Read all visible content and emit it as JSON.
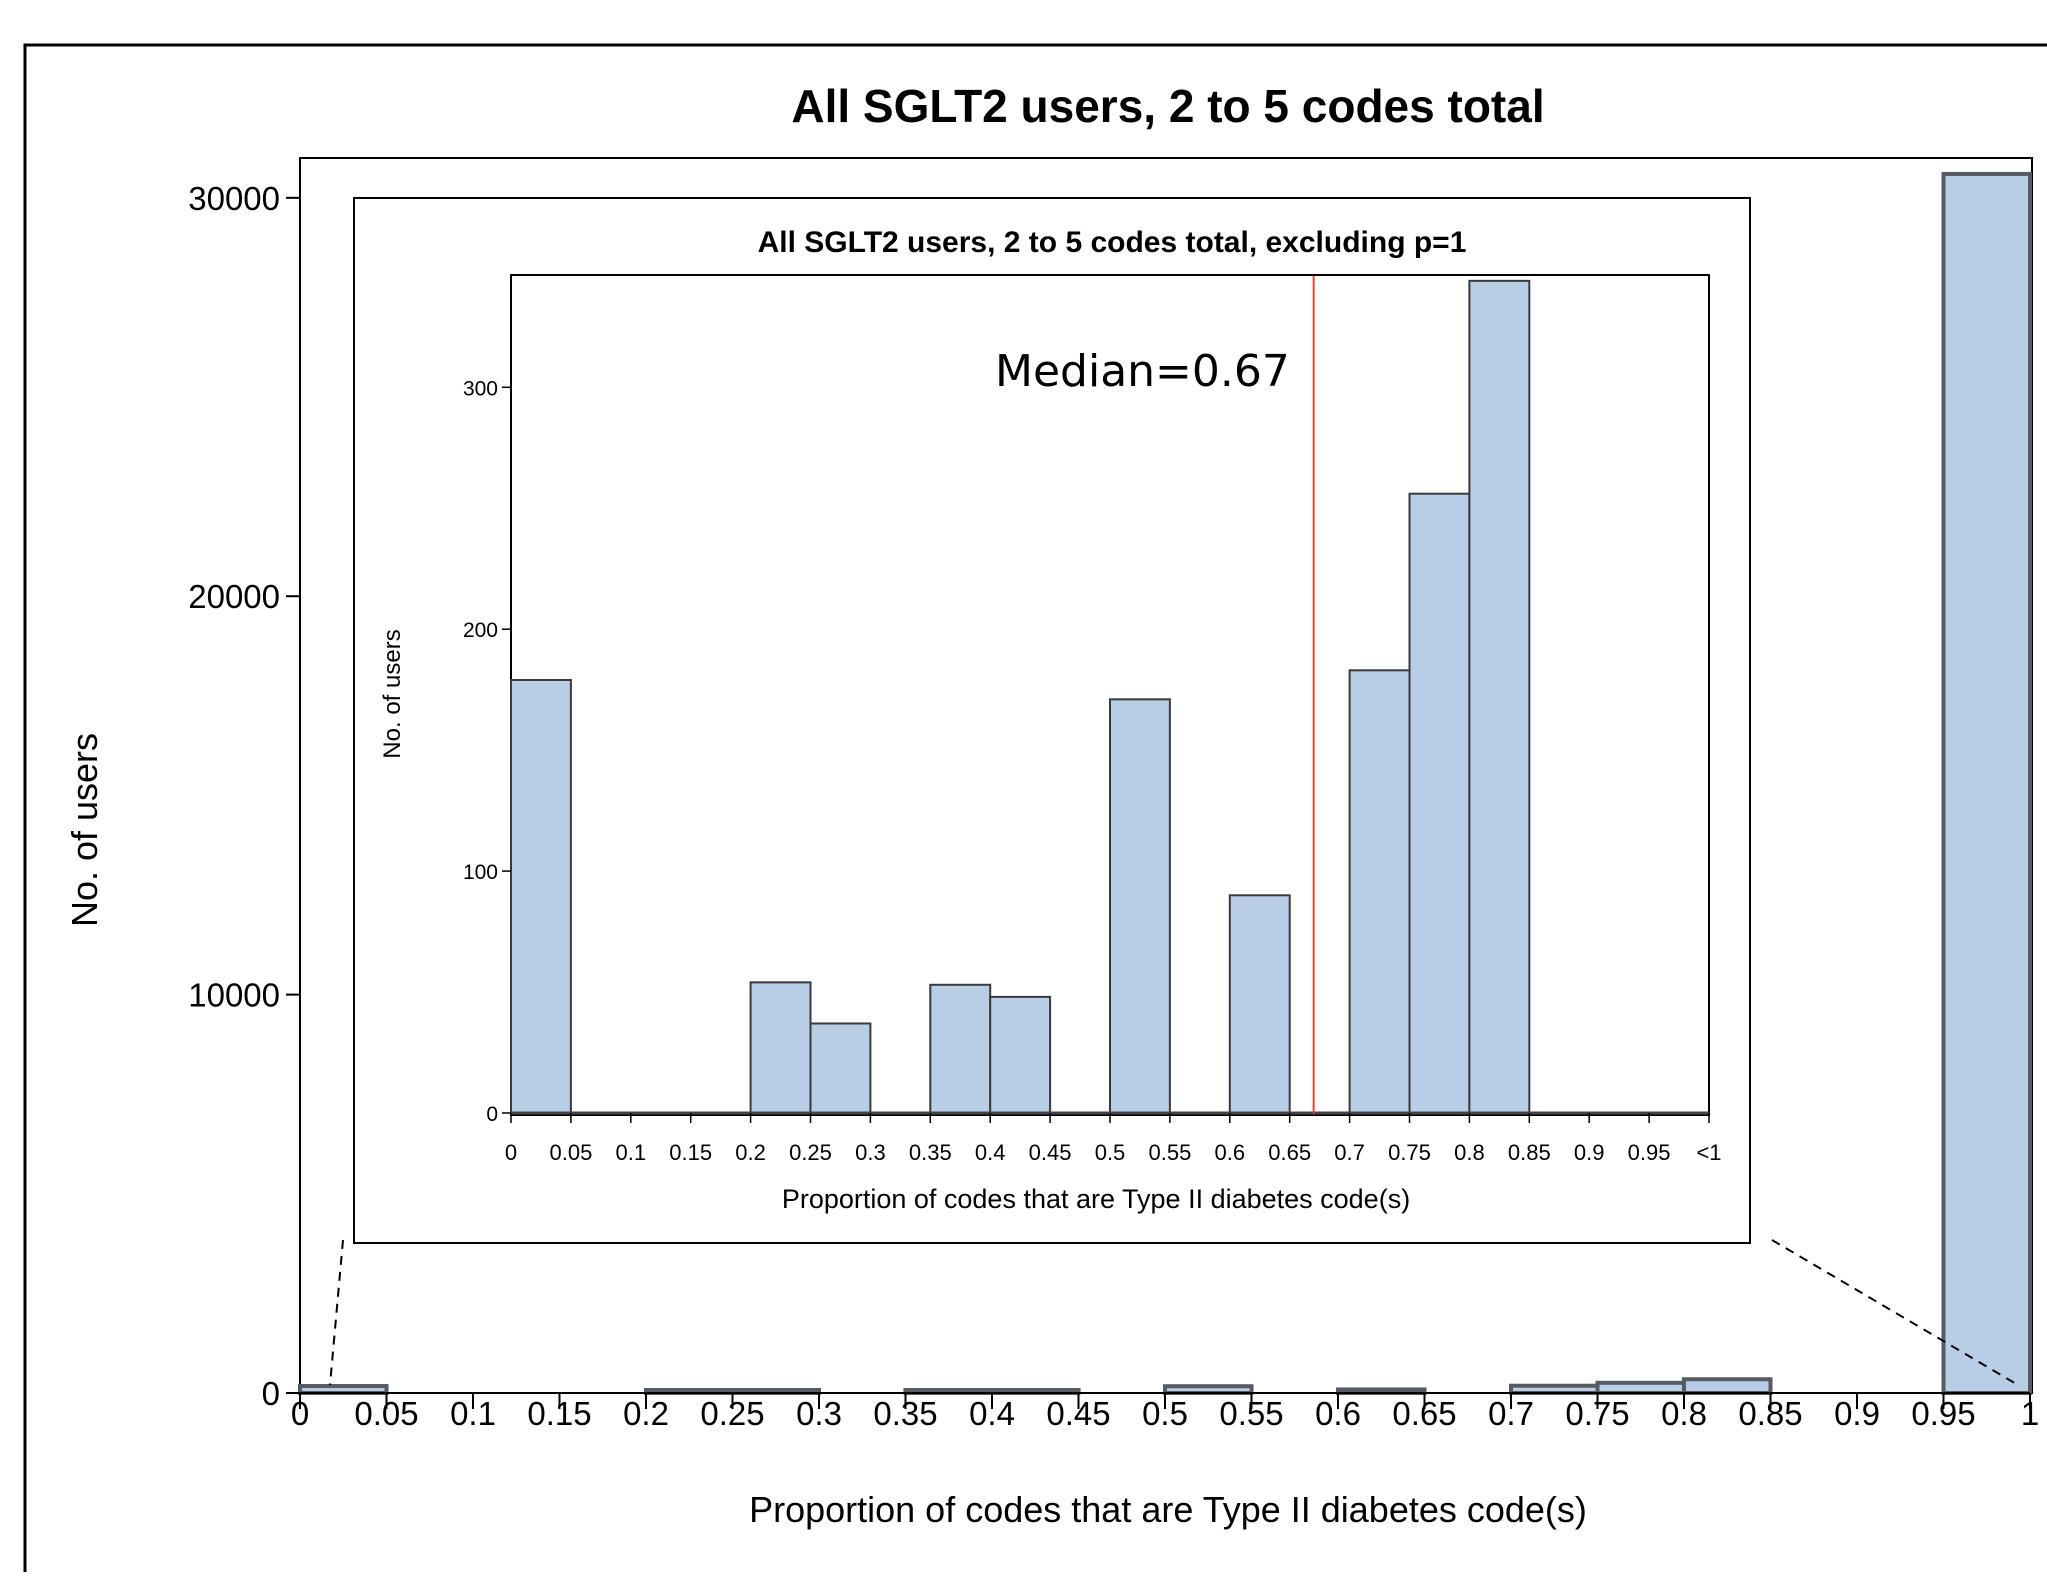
{
  "chart_data": [
    {
      "id": "main",
      "type": "bar",
      "title": "All SGLT2 users, 2 to 5 codes total",
      "xlabel": "Proportion of codes that are Type II diabetes code(s)",
      "ylabel": "No. of users",
      "x_tick_labels": [
        "0",
        "0.05",
        "0.1",
        "0.15",
        "0.2",
        "0.25",
        "0.3",
        "0.35",
        "0.4",
        "0.45",
        "0.5",
        "0.55",
        "0.6",
        "0.65",
        "0.7",
        "0.75",
        "0.8",
        "0.85",
        "0.9",
        "0.95",
        "1"
      ],
      "y_ticks": [
        0,
        10000,
        20000,
        30000
      ],
      "y_tick_labels": [
        "0",
        "10000",
        "20000",
        "30000"
      ],
      "ylim": [
        0,
        31000
      ],
      "bins": [
        {
          "x0": 0,
          "x1": 0.05,
          "value": 175
        },
        {
          "x0": 0.2,
          "x1": 0.25,
          "value": 53
        },
        {
          "x0": 0.25,
          "x1": 0.3,
          "value": 37
        },
        {
          "x0": 0.35,
          "x1": 0.4,
          "value": 52
        },
        {
          "x0": 0.4,
          "x1": 0.45,
          "value": 48
        },
        {
          "x0": 0.5,
          "x1": 0.55,
          "value": 170
        },
        {
          "x0": 0.6,
          "x1": 0.65,
          "value": 89
        },
        {
          "x0": 0.7,
          "x1": 0.75,
          "value": 183
        },
        {
          "x0": 0.75,
          "x1": 0.8,
          "value": 256
        },
        {
          "x0": 0.8,
          "x1": 0.85,
          "value": 345
        },
        {
          "x0": 0.95,
          "x1": 1.0,
          "value": 30600
        }
      ]
    },
    {
      "id": "inset",
      "type": "bar",
      "title": "All SGLT2 users, 2 to 5 codes total, excluding p=1",
      "xlabel": "Proportion of codes that are Type II diabetes code(s)",
      "ylabel": "No. of users",
      "x_tick_labels": [
        "0",
        "0.05",
        "0.1",
        "0.15",
        "0.2",
        "0.25",
        "0.3",
        "0.35",
        "0.4",
        "0.45",
        "0.5",
        "0.55",
        "0.6",
        "0.65",
        "0.7",
        "0.75",
        "0.8",
        "0.85",
        "0.9",
        "0.95",
        "<1"
      ],
      "y_ticks": [
        0,
        100,
        200,
        300
      ],
      "y_tick_labels": [
        "0",
        "100",
        "200",
        "300"
      ],
      "ylim": [
        0,
        346
      ],
      "bins": [
        {
          "x0": 0,
          "x1": 0.05,
          "value": 179
        },
        {
          "x0": 0.2,
          "x1": 0.25,
          "value": 54
        },
        {
          "x0": 0.25,
          "x1": 0.3,
          "value": 37
        },
        {
          "x0": 0.35,
          "x1": 0.4,
          "value": 53
        },
        {
          "x0": 0.4,
          "x1": 0.45,
          "value": 48
        },
        {
          "x0": 0.5,
          "x1": 0.55,
          "value": 171
        },
        {
          "x0": 0.6,
          "x1": 0.65,
          "value": 90
        },
        {
          "x0": 0.7,
          "x1": 0.75,
          "value": 183
        },
        {
          "x0": 0.75,
          "x1": 0.8,
          "value": 256
        },
        {
          "x0": 0.8,
          "x1": 0.85,
          "value": 344
        }
      ],
      "median": 0.67,
      "median_label": "Median=0.67"
    }
  ],
  "colors": {
    "bar_fill": "#b8cde6",
    "bar_stroke": "#3a3a3a",
    "main_bar_stroke": "#555a63",
    "axis": "#000000",
    "median_line": "#e8413c"
  }
}
